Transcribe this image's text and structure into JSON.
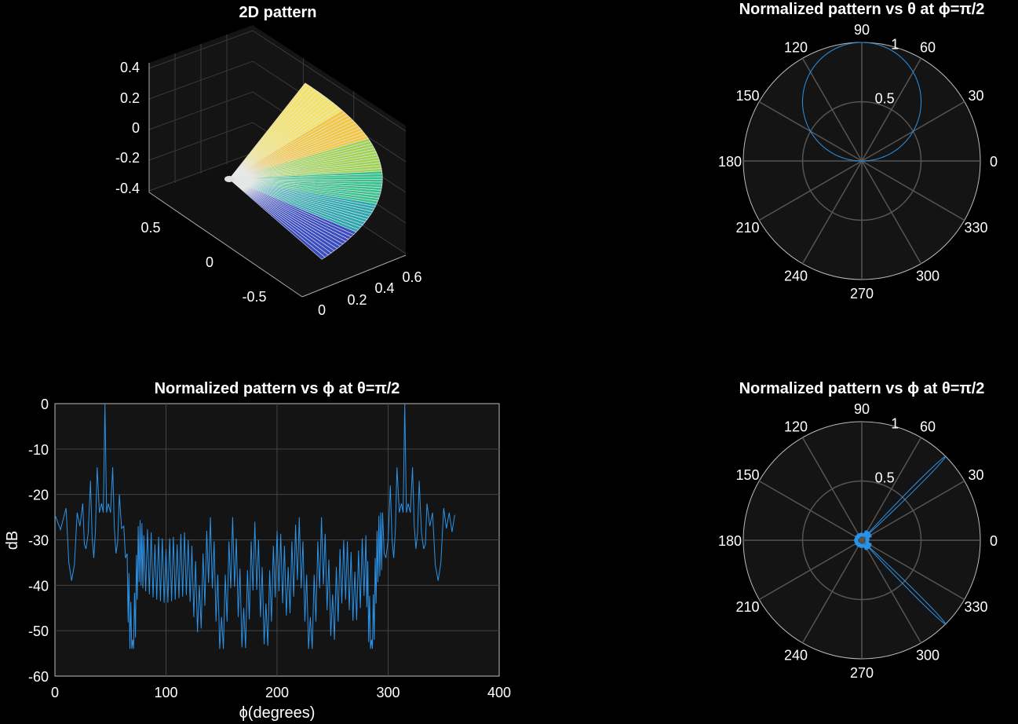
{
  "chart_data": [
    {
      "type": "surface3d",
      "title": "2D pattern",
      "z_ticks": [
        "0.4",
        "0.2",
        "0",
        "-0.2",
        "-0.4"
      ],
      "y_ticks": [
        "0.5",
        "0",
        "-0.5"
      ],
      "x_ticks": [
        "0",
        "0.2",
        "0.4",
        "0.6"
      ],
      "zlim": [
        -0.45,
        0.45
      ],
      "ylim": [
        -0.7,
        0.7
      ],
      "xlim": [
        0,
        0.65
      ],
      "grid": true,
      "colormap": [
        "#3b4cc0",
        "#2ca7b0",
        "#38c08e",
        "#9fd255",
        "#f2c744",
        "#f4e36a"
      ]
    },
    {
      "type": "polar",
      "title": "Normalized pattern vs θ at ϕ=π/2",
      "angle_ticks": [
        "0",
        "30",
        "60",
        "90",
        "120",
        "150",
        "180",
        "210",
        "240",
        "270",
        "300",
        "330"
      ],
      "r_ticks": [
        "0.5",
        "1"
      ],
      "rlim": [
        0,
        1
      ],
      "series": [
        {
          "description": "circle r = sin(angle)",
          "samples_deg": [
            0,
            30,
            60,
            90,
            120,
            150,
            180
          ],
          "r": [
            0,
            0.5,
            0.866,
            1,
            0.866,
            0.5,
            0
          ]
        }
      ],
      "line_color": "#2a93e8"
    },
    {
      "type": "line",
      "title": "Normalized pattern vs ϕ at θ=π/2",
      "xlabel": "ϕ(degrees)",
      "ylabel": "dB",
      "xlim": [
        0,
        400
      ],
      "ylim": [
        -60,
        0
      ],
      "x_ticks": [
        "0",
        "100",
        "200",
        "300",
        "400"
      ],
      "y_ticks": [
        "0",
        "-10",
        "-20",
        "-30",
        "-40",
        "-50",
        "-60"
      ],
      "grid": true,
      "series": [
        {
          "x": [
            0,
            10,
            15,
            20,
            25,
            28,
            32,
            35,
            38,
            42,
            45,
            48,
            52,
            55,
            58,
            62,
            65,
            70,
            75,
            80,
            90,
            100,
            110,
            120,
            130,
            140,
            150,
            160,
            170,
            180,
            190,
            200,
            210,
            220,
            230,
            240,
            250,
            260,
            270,
            280,
            285,
            290,
            295,
            298,
            302,
            305,
            308,
            312,
            315,
            318,
            322,
            325,
            328,
            332,
            335,
            340,
            345,
            350,
            355,
            360
          ],
          "y": [
            -24.5,
            -23,
            -39,
            -24,
            -22,
            -32,
            -17,
            -34,
            -14,
            -22,
            0,
            -22,
            -14,
            -33,
            -20,
            -27,
            -33,
            -52,
            -27,
            -29,
            -31,
            -32,
            -31,
            -30,
            -40,
            -25,
            -47,
            -25,
            -45,
            -26,
            -44,
            -28,
            -36,
            -25,
            -47,
            -25,
            -42,
            -30,
            -37,
            -29,
            -52,
            -28,
            -24,
            -34,
            -18,
            -34,
            -14,
            -22,
            0,
            -22,
            -14,
            -32,
            -17,
            -32,
            -22,
            -24,
            -39,
            -23,
            -24,
            -24.5
          ]
        }
      ],
      "line_color": "#2a93e8"
    },
    {
      "type": "polar",
      "title": "Normalized pattern vs ϕ at θ=π/2",
      "angle_ticks": [
        "0",
        "30",
        "60",
        "90",
        "120",
        "150",
        "180",
        "210",
        "240",
        "270",
        "300",
        "330"
      ],
      "r_ticks": [
        "0.5",
        "1"
      ],
      "rlim": [
        0,
        1
      ],
      "series": [
        {
          "description": "two narrow main lobes",
          "lobe_angles_deg": [
            45,
            315
          ],
          "lobe_r": [
            1,
            1
          ],
          "lobe_width_deg": 5
        }
      ],
      "line_color": "#2a93e8"
    }
  ]
}
